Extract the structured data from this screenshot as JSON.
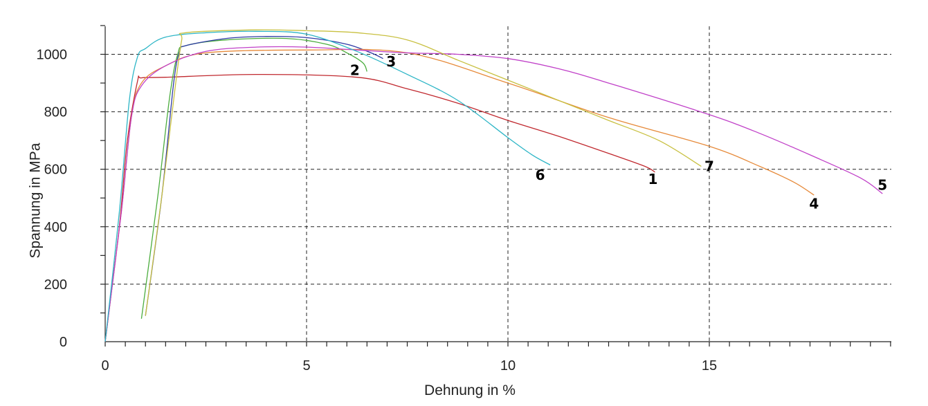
{
  "chart_data": {
    "type": "line",
    "xlabel": "Dehnung in %",
    "ylabel": "Spannung in MPa",
    "xlim": [
      0,
      19.5
    ],
    "ylim": [
      0,
      1100
    ],
    "x_ticks": [
      0,
      5,
      10,
      15
    ],
    "y_ticks": [
      0,
      200,
      400,
      600,
      800,
      1000
    ],
    "x_minor_step": 0.5,
    "y_minor_step": 100,
    "grid": "dashed",
    "legend": "none",
    "series": [
      {
        "name": "1",
        "color": "#c0282e",
        "label_at": [
          13.6,
          565
        ],
        "points": [
          [
            0,
            0
          ],
          [
            0.35,
            400
          ],
          [
            0.55,
            700
          ],
          [
            0.8,
            905
          ],
          [
            0.9,
            918
          ],
          [
            1.5,
            920
          ],
          [
            3.75,
            930
          ],
          [
            6.25,
            920
          ],
          [
            7.5,
            880
          ],
          [
            8.75,
            830
          ],
          [
            10,
            770
          ],
          [
            11.25,
            715
          ],
          [
            12.5,
            655
          ],
          [
            13.4,
            610
          ],
          [
            13.65,
            590
          ]
        ]
      },
      {
        "name": "2",
        "color": "#4aac3c",
        "label_at": [
          6.2,
          945
        ],
        "points": [
          [
            0.9,
            80
          ],
          [
            1.3,
            500
          ],
          [
            1.6,
            850
          ],
          [
            1.8,
            1000
          ],
          [
            2.0,
            1030
          ],
          [
            3.0,
            1050
          ],
          [
            4.5,
            1055
          ],
          [
            5.5,
            1035
          ],
          [
            6.0,
            1005
          ],
          [
            6.4,
            970
          ],
          [
            6.5,
            940
          ]
        ]
      },
      {
        "name": "3",
        "color": "#2f3aa6",
        "label_at": [
          7.1,
          975
        ],
        "points": [
          [
            1.0,
            90
          ],
          [
            1.4,
            500
          ],
          [
            1.7,
            900
          ],
          [
            1.85,
            1010
          ],
          [
            2.0,
            1030
          ],
          [
            3.0,
            1055
          ],
          [
            4.0,
            1062
          ],
          [
            5.0,
            1058
          ],
          [
            6.0,
            1035
          ],
          [
            6.6,
            1005
          ],
          [
            6.9,
            985
          ]
        ]
      },
      {
        "name": "4",
        "color": "#e68a3a",
        "label_at": [
          17.6,
          480
        ],
        "points": [
          [
            0,
            0
          ],
          [
            0.4,
            450
          ],
          [
            0.65,
            780
          ],
          [
            0.9,
            900
          ],
          [
            1.5,
            960
          ],
          [
            2.5,
            1005
          ],
          [
            5.0,
            1015
          ],
          [
            7.5,
            1005
          ],
          [
            10,
            900
          ],
          [
            12.5,
            780
          ],
          [
            15,
            680
          ],
          [
            16.25,
            610
          ],
          [
            17.1,
            555
          ],
          [
            17.6,
            510
          ]
        ]
      },
      {
        "name": "5",
        "color": "#c040c8",
        "label_at": [
          19.3,
          545
        ],
        "points": [
          [
            0,
            0
          ],
          [
            0.4,
            450
          ],
          [
            0.65,
            780
          ],
          [
            0.9,
            890
          ],
          [
            1.5,
            960
          ],
          [
            2.5,
            1010
          ],
          [
            3.75,
            1025
          ],
          [
            5.0,
            1025
          ],
          [
            6.25,
            1015
          ],
          [
            7.5,
            1005
          ],
          [
            8.75,
            1000
          ],
          [
            10.0,
            985
          ],
          [
            11.25,
            950
          ],
          [
            12.5,
            900
          ],
          [
            15.0,
            790
          ],
          [
            16.25,
            725
          ],
          [
            17.5,
            650
          ],
          [
            18.75,
            570
          ],
          [
            19.3,
            515
          ]
        ]
      },
      {
        "name": "6",
        "color": "#2cb5c6",
        "label_at": [
          10.8,
          580
        ],
        "points": [
          [
            0,
            0
          ],
          [
            0.35,
            450
          ],
          [
            0.6,
            840
          ],
          [
            0.8,
            990
          ],
          [
            1.0,
            1020
          ],
          [
            1.5,
            1060
          ],
          [
            2.5,
            1075
          ],
          [
            3.75,
            1080
          ],
          [
            5.0,
            1070
          ],
          [
            6.25,
            1010
          ],
          [
            7.5,
            930
          ],
          [
            8.75,
            840
          ],
          [
            10.0,
            710
          ],
          [
            10.6,
            650
          ],
          [
            11.05,
            615
          ]
        ]
      },
      {
        "name": "7",
        "color": "#c8c040",
        "label_at": [
          15.0,
          610
        ],
        "points": [
          [
            1.0,
            90
          ],
          [
            1.4,
            500
          ],
          [
            1.75,
            900
          ],
          [
            1.9,
            1050
          ],
          [
            2.0,
            1075
          ],
          [
            3.75,
            1085
          ],
          [
            5.0,
            1082
          ],
          [
            6.25,
            1075
          ],
          [
            7.5,
            1050
          ],
          [
            8.75,
            980
          ],
          [
            10.0,
            910
          ],
          [
            11.25,
            840
          ],
          [
            12.5,
            770
          ],
          [
            13.75,
            700
          ],
          [
            14.8,
            610
          ]
        ]
      }
    ]
  }
}
